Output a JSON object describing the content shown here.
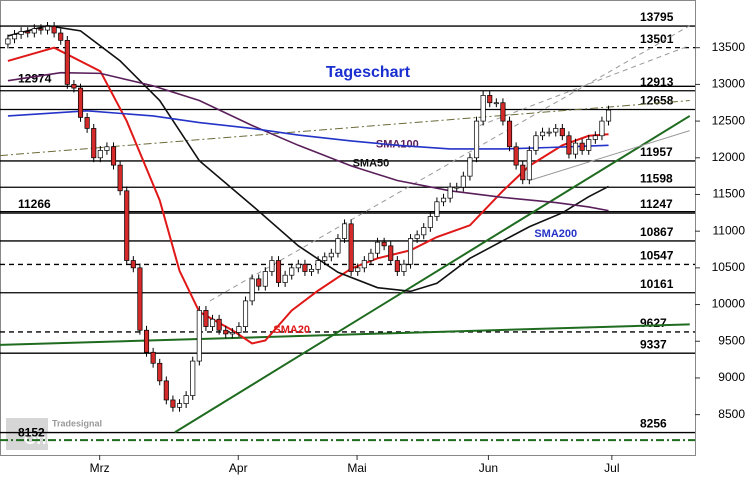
{
  "chart_data": {
    "type": "candlestick",
    "title": "Tageschart",
    "logo": [
      "Tradesignal",
      "Online"
    ],
    "xlim": [
      -1.2,
      104.1
    ],
    "ylim": [
      7950,
      14150
    ],
    "xticks": [
      {
        "value": 13.9,
        "label": "Mrz"
      },
      {
        "value": 34.9,
        "label": "Apr"
      },
      {
        "value": 52.9,
        "label": "Mai"
      },
      {
        "value": 72.8,
        "label": "Jun"
      },
      {
        "value": 91.5,
        "label": "Jul"
      }
    ],
    "yticks": [
      8500,
      9000,
      9500,
      10000,
      10500,
      11000,
      11500,
      12000,
      12500,
      13000,
      13500
    ],
    "up_color": "#ffffff",
    "down_color": "#d42a2a",
    "open": [
      13550,
      13620,
      13680,
      13720,
      13700,
      13760,
      13740,
      13790,
      13700,
      13600,
      13000,
      12950,
      12550,
      12400,
      12000,
      12100,
      12150,
      11900,
      11550,
      10600,
      10500,
      9650,
      9350,
      9200,
      8960,
      8700,
      8600,
      8650,
      8760,
      9230,
      9920,
      9700,
      9800,
      9650,
      9600,
      9620,
      9700,
      10050,
      10350,
      10250,
      10450,
      10600,
      10300,
      10400,
      10500,
      10550,
      10450,
      10480,
      10600,
      10650,
      10700,
      10900,
      11100,
      10450,
      10500,
      10600,
      10700,
      10850,
      10800,
      10600,
      10450,
      10550,
      10900,
      10950,
      11050,
      11200,
      11400,
      11450,
      11600,
      11600,
      11750,
      12000,
      12500,
      12850,
      12750,
      12750,
      12500,
      12150,
      11900,
      11700,
      12100,
      12300,
      12350,
      12350,
      12400,
      12300,
      12050,
      12200,
      12100,
      12250,
      12300,
      12500
    ],
    "high": [
      13680,
      13740,
      13780,
      13780,
      13820,
      13820,
      13850,
      13850,
      13760,
      13660,
      13060,
      13010,
      12610,
      12460,
      12160,
      12210,
      12210,
      11960,
      11610,
      10660,
      10560,
      9710,
      9410,
      9260,
      9020,
      8760,
      8710,
      8820,
      9290,
      9980,
      9980,
      9860,
      9860,
      9710,
      9680,
      9760,
      10110,
      10410,
      10410,
      10510,
      10660,
      10660,
      10460,
      10560,
      10610,
      10610,
      10540,
      10660,
      10710,
      10760,
      10960,
      11160,
      11160,
      10560,
      10660,
      10760,
      10910,
      10910,
      10860,
      10660,
      10610,
      10960,
      11010,
      11110,
      11260,
      11460,
      11510,
      11660,
      11660,
      11810,
      12060,
      12560,
      12910,
      12910,
      12810,
      12810,
      12560,
      12210,
      11960,
      12160,
      12360,
      12410,
      12410,
      12460,
      12460,
      12360,
      12260,
      12260,
      12310,
      12360,
      12560,
      12710
    ],
    "low": [
      13490,
      13560,
      13620,
      13640,
      13640,
      13680,
      13680,
      13640,
      13540,
      12940,
      12890,
      12490,
      12340,
      11940,
      11940,
      12040,
      11840,
      11490,
      10540,
      10440,
      9590,
      9290,
      9140,
      8900,
      8640,
      8540,
      8540,
      8590,
      8700,
      9170,
      9640,
      9640,
      9590,
      9540,
      9540,
      9560,
      9640,
      9990,
      10190,
      10190,
      10390,
      10240,
      10240,
      10340,
      10440,
      10390,
      10390,
      10420,
      10540,
      10590,
      10640,
      10840,
      10390,
      10390,
      10440,
      10540,
      10640,
      10740,
      10540,
      10390,
      10390,
      10490,
      10840,
      10890,
      10990,
      11140,
      11340,
      11390,
      11540,
      11540,
      11690,
      11940,
      12440,
      12690,
      12690,
      12440,
      12090,
      11840,
      11640,
      11640,
      12040,
      12240,
      12290,
      12290,
      12240,
      11990,
      11990,
      12040,
      12040,
      12190,
      12240,
      12440
    ],
    "close": [
      13620,
      13680,
      13720,
      13700,
      13760,
      13740,
      13790,
      13700,
      13600,
      13000,
      12950,
      12550,
      12400,
      12000,
      12100,
      12150,
      11900,
      11550,
      10600,
      10500,
      9650,
      9350,
      9200,
      8960,
      8700,
      8600,
      8650,
      8760,
      9230,
      9920,
      9700,
      9800,
      9650,
      9600,
      9620,
      9700,
      10050,
      10350,
      10250,
      10450,
      10600,
      10300,
      10400,
      10500,
      10550,
      10450,
      10480,
      10600,
      10650,
      10700,
      10900,
      11100,
      10450,
      10500,
      10600,
      10700,
      10850,
      10800,
      10600,
      10450,
      10550,
      10900,
      10950,
      11050,
      11200,
      11400,
      11450,
      11600,
      11600,
      11750,
      12000,
      12500,
      12850,
      12750,
      12750,
      12500,
      12150,
      11900,
      11700,
      12100,
      12300,
      12350,
      12350,
      12400,
      12300,
      12050,
      12200,
      12100,
      12250,
      12300,
      12500,
      12650
    ],
    "series": [
      {
        "name": "SMA20",
        "color": "#e01818",
        "x": [
          0,
          7,
          14,
          18,
          23,
          26,
          29,
          34,
          37,
          39,
          43,
          47,
          52,
          56,
          61,
          65,
          70,
          75,
          79,
          84,
          88,
          91
        ],
        "values": [
          13320,
          13500,
          13180,
          12500,
          11420,
          10460,
          9900,
          9650,
          9470,
          9510,
          9920,
          10190,
          10490,
          10630,
          10740,
          10920,
          11080,
          11550,
          11890,
          12170,
          12300,
          12320
        ]
      },
      {
        "name": "SMA50",
        "color": "#111111",
        "x": [
          0,
          6,
          11,
          17,
          23,
          29,
          37,
          44,
          50,
          56,
          61,
          65,
          70,
          75,
          79,
          84,
          88,
          91
        ],
        "values": [
          13660,
          13800,
          13730,
          13320,
          12780,
          11960,
          11350,
          10800,
          10440,
          10230,
          10180,
          10290,
          10630,
          10870,
          11060,
          11250,
          11470,
          11610
        ]
      },
      {
        "name": "SMA100",
        "color": "#5a1f5a",
        "x": [
          0,
          8,
          14,
          22,
          29,
          37,
          44,
          52,
          59,
          67,
          75,
          83,
          88,
          91
        ],
        "values": [
          13050,
          13160,
          13150,
          12980,
          12780,
          12440,
          12170,
          11890,
          11690,
          11550,
          11460,
          11390,
          11330,
          11280
        ]
      },
      {
        "name": "SMA200",
        "color": "#2433c8",
        "x": [
          0,
          12,
          22,
          29,
          37,
          44,
          52,
          59,
          67,
          75,
          82,
          91
        ],
        "values": [
          12570,
          12640,
          12570,
          12480,
          12400,
          12310,
          12230,
          12170,
          12120,
          12120,
          12140,
          12170
        ]
      }
    ],
    "series_label_pos": [
      [
        43,
        9650
      ],
      [
        55,
        11920
      ],
      [
        59,
        12180
      ],
      [
        83,
        10960
      ]
    ],
    "levels": [
      {
        "value": 13795,
        "style": "solid"
      },
      {
        "value": 13501,
        "style": "dashed"
      },
      {
        "value": 12913,
        "style": "solid"
      },
      {
        "value": 12658,
        "style": "solid"
      },
      {
        "value": 11957,
        "style": "solid"
      },
      {
        "value": 11598,
        "style": "solid"
      },
      {
        "value": 11247,
        "style": "solid"
      },
      {
        "value": 10867,
        "style": "solid"
      },
      {
        "value": 10547,
        "style": "dashed"
      },
      {
        "value": 10161,
        "style": "solid"
      },
      {
        "value": 9627,
        "style": "dashed"
      },
      {
        "value": 9337,
        "style": "solid"
      },
      {
        "value": 8256,
        "style": "solid"
      }
    ],
    "left_levels": [
      {
        "value": 12974,
        "style": "solid"
      },
      {
        "value": 11266,
        "style": "solid"
      },
      {
        "value": 8152,
        "style": "dashdot"
      }
    ],
    "trendlines": [
      {
        "x": [
          25.3,
          103.3
        ],
        "values": [
          8260,
          12570
        ],
        "color": "#1f6b1f",
        "style": "solid"
      },
      {
        "x": [
          -1.2,
          103.3
        ],
        "values": [
          9450,
          9730
        ],
        "color": "#1f6b1f",
        "style": "solid"
      },
      {
        "x": [
          30.6,
          103.3
        ],
        "values": [
          10050,
          13800
        ],
        "color": "#999999",
        "style": "dashed"
      },
      {
        "x": [
          71.5,
          103.3
        ],
        "values": [
          12440,
          13530
        ],
        "color": "#999999",
        "style": "dashed"
      },
      {
        "x": [
          -1.2,
          103.3
        ],
        "values": [
          12030,
          12780
        ],
        "color": "#6b6b3a",
        "style": "dashdot"
      },
      {
        "x": [
          79,
          103.3
        ],
        "values": [
          11690,
          12370
        ],
        "color": "#999999",
        "style": "solid"
      }
    ]
  }
}
